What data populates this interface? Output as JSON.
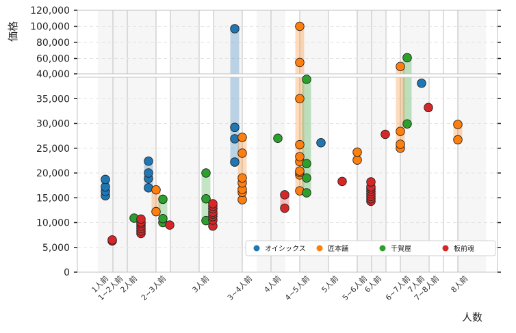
{
  "chart_data": {
    "type": "scatter",
    "title": "",
    "xlabel": "人数",
    "ylabel": "価格",
    "grid": true,
    "legend_placement": "lower-right",
    "y_axis": {
      "broken": true,
      "lower_range": [
        0,
        40000
      ],
      "upper_range": [
        40000,
        120000
      ],
      "lower_ticks": [
        0,
        5000,
        10000,
        15000,
        20000,
        25000,
        30000,
        35000,
        40000
      ],
      "upper_ticks": [
        40000,
        60000,
        80000,
        100000,
        120000
      ],
      "tick_labels_lower": [
        "0",
        "5,000",
        "10,000",
        "15,000",
        "20,000",
        "25,000",
        "30,000",
        "35,000",
        "40,000"
      ],
      "tick_labels_upper": [
        "60,000",
        "80,000",
        "100,000",
        "120,000"
      ]
    },
    "categories": [
      "1人前",
      "1~2人前",
      "2人前",
      "2~3人前",
      "3人前",
      "3~4人前",
      "4人前",
      "4~5人前",
      "5人前",
      "5~6人前",
      "6人前",
      "6~7人前",
      "7人前",
      "7~8人前",
      "8人前"
    ],
    "series": [
      {
        "name": "オイシックス",
        "color": "#1f77b4",
        "points": [
          {
            "category": "1~2人前",
            "values": [
              15400,
              16300,
              17200,
              18700
            ]
          },
          {
            "category": "2~3人前",
            "values": [
              17000,
              18900,
              20000,
              22400
            ]
          },
          {
            "category": "3~4人前",
            "values": [
              22200,
              26900,
              29200,
              97000
            ]
          },
          {
            "category": "5人前",
            "values": [
              26100
            ]
          },
          {
            "category": "7~8人前",
            "values": [
              38100
            ]
          }
        ]
      },
      {
        "name": "匠本舗",
        "color": "#ff7f0e",
        "points": [
          {
            "category": "2~3人前",
            "values": [
              12200,
              16600
            ]
          },
          {
            "category": "3~4人前",
            "values": [
              14600,
              16100,
              16700,
              18000,
              19000,
              24000,
              27200
            ]
          },
          {
            "category": "4~5人前",
            "values": [
              16400,
              19600,
              20100,
              20400,
              22300,
              23300,
              25700,
              35000,
              55000,
              100000
            ]
          },
          {
            "category": "5~6人前",
            "values": [
              22600,
              24200
            ]
          },
          {
            "category": "6~7人前",
            "values": [
              25000,
              25800,
              28400,
              50000
            ]
          },
          {
            "category": "8人前",
            "values": [
              26700,
              29800
            ]
          }
        ]
      },
      {
        "name": "千賀屋",
        "color": "#2ca02c",
        "points": [
          {
            "category": "2人前",
            "values": [
              10900
            ]
          },
          {
            "category": "2~3人前",
            "values": [
              10000,
              10800,
              14700
            ]
          },
          {
            "category": "3人前",
            "values": [
              10400,
              14800,
              20000
            ]
          },
          {
            "category": "4人前",
            "values": [
              27000
            ]
          },
          {
            "category": "4~5人前",
            "values": [
              16000,
              19000,
              21900,
              38900
            ]
          },
          {
            "category": "6~7人前",
            "values": [
              29900,
              61000
            ]
          }
        ]
      },
      {
        "name": "板前魂",
        "color": "#d62728",
        "points": [
          {
            "category": "1人前",
            "values": [
              6300,
              6500
            ]
          },
          {
            "category": "2人前",
            "values": [
              7800,
              8300,
              8800,
              9300,
              9800,
              10100,
              10700
            ]
          },
          {
            "category": "2~3人前",
            "values": [
              9500
            ]
          },
          {
            "category": "3人前",
            "values": [
              9300,
              10500,
              11200,
              11700,
              12100,
              12800,
              13300,
              13800
            ]
          },
          {
            "category": "4人前",
            "values": [
              12900,
              15600
            ]
          },
          {
            "category": "5人前",
            "values": [
              18300
            ]
          },
          {
            "category": "5~6人前",
            "values": [
              14300,
              14800,
              15300,
              15800,
              16300,
              16800,
              17200,
              18200
            ]
          },
          {
            "category": "6人前",
            "values": [
              27800
            ]
          },
          {
            "category": "7人前",
            "values": [
              33200
            ]
          }
        ]
      }
    ]
  }
}
